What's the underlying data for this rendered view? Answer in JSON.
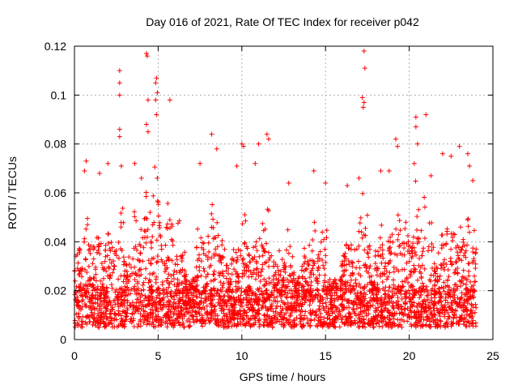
{
  "chart_data": {
    "type": "scatter",
    "title": "Day 016 of 2021, Rate Of TEC Index for receiver p042",
    "xlabel": "GPS time / hours",
    "ylabel": "ROTI / TECUs",
    "xlim": [
      0,
      25
    ],
    "ylim": [
      0,
      0.12
    ],
    "xticks": [
      0,
      5,
      10,
      15,
      20,
      25
    ],
    "xtick_labels": [
      "0",
      "5",
      "10",
      "15",
      "20",
      "25"
    ],
    "yticks": [
      0,
      0.02,
      0.04,
      0.06,
      0.08,
      0.1,
      0.12
    ],
    "ytick_labels": [
      "0",
      "0.02",
      "0.04",
      "0.06",
      "0.08",
      "0.1",
      "0.12"
    ],
    "grid": true,
    "marker": "plus",
    "color": "#ff0000",
    "series": [
      {
        "name": "ROTI",
        "x_range": [
          0,
          24
        ],
        "baseline_range": [
          0.005,
          0.02
        ],
        "notable_points": [
          {
            "x": 2.7,
            "y": 0.11
          },
          {
            "x": 2.7,
            "y": 0.105
          },
          {
            "x": 2.7,
            "y": 0.1
          },
          {
            "x": 2.7,
            "y": 0.086
          },
          {
            "x": 2.7,
            "y": 0.083
          },
          {
            "x": 4.3,
            "y": 0.117
          },
          {
            "x": 4.35,
            "y": 0.116
          },
          {
            "x": 4.4,
            "y": 0.098
          },
          {
            "x": 4.3,
            "y": 0.088
          },
          {
            "x": 4.4,
            "y": 0.085
          },
          {
            "x": 4.9,
            "y": 0.107
          },
          {
            "x": 4.85,
            "y": 0.105
          },
          {
            "x": 4.95,
            "y": 0.101
          },
          {
            "x": 4.85,
            "y": 0.098
          },
          {
            "x": 4.9,
            "y": 0.092
          },
          {
            "x": 5.7,
            "y": 0.098
          },
          {
            "x": 8.2,
            "y": 0.084
          },
          {
            "x": 8.5,
            "y": 0.078
          },
          {
            "x": 10.0,
            "y": 0.08
          },
          {
            "x": 10.1,
            "y": 0.079
          },
          {
            "x": 11.0,
            "y": 0.08
          },
          {
            "x": 11.5,
            "y": 0.084
          },
          {
            "x": 11.6,
            "y": 0.082
          },
          {
            "x": 17.3,
            "y": 0.118
          },
          {
            "x": 17.35,
            "y": 0.111
          },
          {
            "x": 17.2,
            "y": 0.099
          },
          {
            "x": 17.3,
            "y": 0.097
          },
          {
            "x": 17.25,
            "y": 0.095
          },
          {
            "x": 19.2,
            "y": 0.082
          },
          {
            "x": 19.3,
            "y": 0.079
          },
          {
            "x": 20.4,
            "y": 0.091
          },
          {
            "x": 20.4,
            "y": 0.087
          },
          {
            "x": 21.0,
            "y": 0.092
          },
          {
            "x": 20.5,
            "y": 0.08
          },
          {
            "x": 22.0,
            "y": 0.076
          },
          {
            "x": 23.0,
            "y": 0.079
          },
          {
            "x": 23.5,
            "y": 0.076
          },
          {
            "x": 23.6,
            "y": 0.071
          },
          {
            "x": 0.7,
            "y": 0.073
          },
          {
            "x": 0.6,
            "y": 0.069
          },
          {
            "x": 1.5,
            "y": 0.068
          },
          {
            "x": 2.0,
            "y": 0.072
          },
          {
            "x": 2.8,
            "y": 0.071
          },
          {
            "x": 3.6,
            "y": 0.072
          },
          {
            "x": 4.0,
            "y": 0.066
          },
          {
            "x": 7.5,
            "y": 0.072
          },
          {
            "x": 9.7,
            "y": 0.071
          },
          {
            "x": 10.8,
            "y": 0.072
          },
          {
            "x": 12.8,
            "y": 0.064
          },
          {
            "x": 14.3,
            "y": 0.069
          },
          {
            "x": 15.0,
            "y": 0.064
          },
          {
            "x": 16.3,
            "y": 0.063
          },
          {
            "x": 17.0,
            "y": 0.066
          },
          {
            "x": 18.3,
            "y": 0.069
          },
          {
            "x": 18.8,
            "y": 0.069
          },
          {
            "x": 20.3,
            "y": 0.072
          },
          {
            "x": 21.3,
            "y": 0.067
          },
          {
            "x": 22.5,
            "y": 0.075
          },
          {
            "x": 23.8,
            "y": 0.065
          }
        ]
      }
    ]
  }
}
